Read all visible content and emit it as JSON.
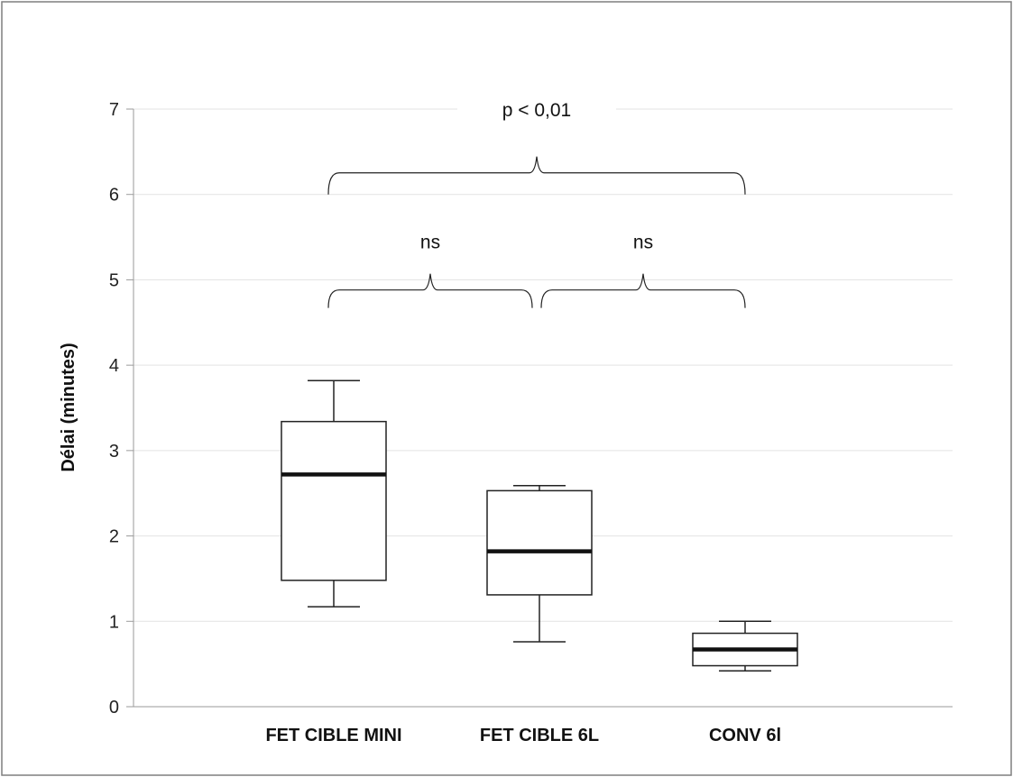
{
  "chart_data": {
    "type": "boxplot",
    "title": "",
    "xlabel": "",
    "ylabel": "Délai (minutes)",
    "ylim": [
      0,
      7
    ],
    "yticks": [
      0,
      1,
      2,
      3,
      4,
      5,
      6,
      7
    ],
    "grid": true,
    "categories": [
      "FET CIBLE MINI",
      "FET CIBLE 6L",
      "CONV 6l"
    ],
    "boxes": [
      {
        "category": "FET CIBLE MINI",
        "min": 1.17,
        "q1": 1.48,
        "median": 2.72,
        "q3": 3.34,
        "max": 3.82
      },
      {
        "category": "FET CIBLE 6L",
        "min": 0.76,
        "q1": 1.31,
        "median": 1.82,
        "q3": 2.53,
        "max": 2.59
      },
      {
        "category": "CONV 6l",
        "min": 0.42,
        "q1": 0.48,
        "median": 0.67,
        "q3": 0.86,
        "max": 1.0
      }
    ],
    "comparisons": [
      {
        "from": "FET CIBLE MINI",
        "to": "CONV 6l",
        "label": "p < 0,01",
        "level": 6.0
      },
      {
        "from": "FET CIBLE MINI",
        "to": "FET CIBLE 6L",
        "label": "ns",
        "level": 4.67
      },
      {
        "from": "FET CIBLE 6L",
        "to": "CONV 6l",
        "label": "ns",
        "level": 4.67
      }
    ],
    "colors": {
      "axis": "#9a9a9a",
      "grid": "#e3e3e3",
      "box": "#222222",
      "median": "#111111",
      "frame": "#7f7f7f"
    }
  }
}
